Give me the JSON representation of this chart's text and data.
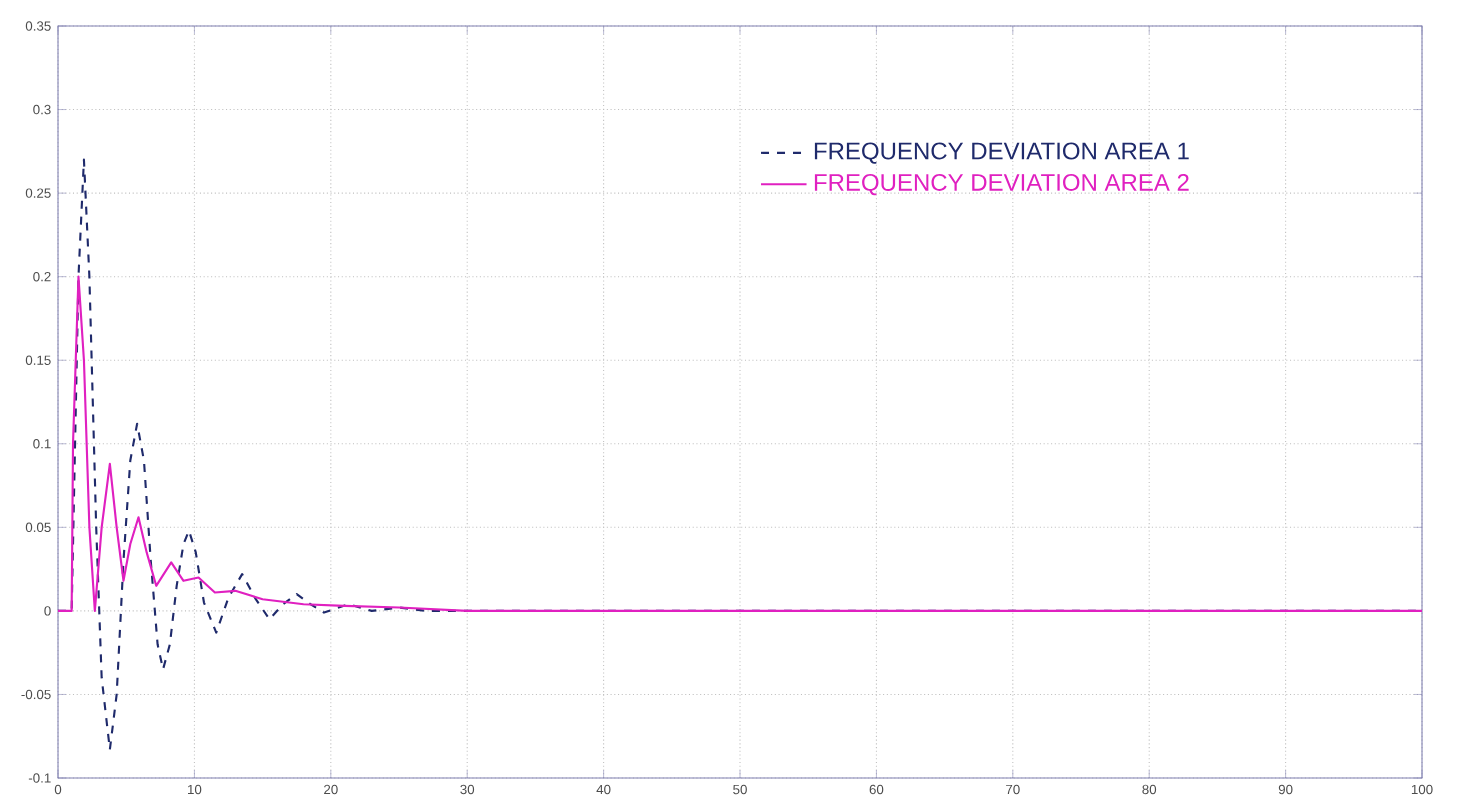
{
  "chart_data": {
    "type": "line",
    "xlim": [
      0,
      100
    ],
    "ylim": [
      -0.1,
      0.35
    ],
    "xticks": [
      0,
      10,
      20,
      30,
      40,
      50,
      60,
      70,
      80,
      90,
      100
    ],
    "yticks": [
      -0.1,
      -0.05,
      0,
      0.05,
      0.1,
      0.15,
      0.2,
      0.25,
      0.3,
      0.35
    ],
    "grid": true,
    "legend": "top right",
    "series": [
      {
        "name": "FREQUENCY DEVIATION AREA 1",
        "color": "#1f2a6b",
        "line_style": "dashed",
        "x": [
          0,
          1,
          1.2,
          1.5,
          1.9,
          2.3,
          2.8,
          3.2,
          3.8,
          4.3,
          4.8,
          5.3,
          5.8,
          6.3,
          6.8,
          7.3,
          7.7,
          8.2,
          8.7,
          9.2,
          9.6,
          10.1,
          10.7,
          11.6,
          12.5,
          13.5,
          14.5,
          15.5,
          16.5,
          17.5,
          18.5,
          19.5,
          21.3,
          23,
          25,
          27,
          30,
          100
        ],
        "values": [
          0,
          0,
          0.08,
          0.2,
          0.27,
          0.2,
          0.05,
          -0.04,
          -0.083,
          -0.05,
          0.03,
          0.09,
          0.112,
          0.09,
          0.03,
          -0.02,
          -0.035,
          -0.02,
          0.015,
          0.04,
          0.048,
          0.035,
          0.005,
          -0.013,
          0.008,
          0.022,
          0.007,
          -0.005,
          0.004,
          0.01,
          0.004,
          -0.001,
          0.004,
          0,
          0.002,
          0,
          0,
          0
        ]
      },
      {
        "name": "FREQUENCY DEVIATION AREA 2",
        "color": "#e020c0",
        "line_style": "solid",
        "x": [
          0,
          1,
          1.1,
          1.5,
          1.9,
          2.3,
          2.7,
          3.2,
          3.8,
          4.3,
          4.8,
          5.3,
          5.9,
          6.5,
          7.2,
          8.3,
          9.2,
          10.3,
          11.5,
          13,
          15,
          18,
          21,
          25,
          30,
          100
        ],
        "values": [
          0,
          0,
          0.1,
          0.2,
          0.15,
          0.05,
          0,
          0.05,
          0.088,
          0.05,
          0.018,
          0.04,
          0.056,
          0.035,
          0.015,
          0.029,
          0.018,
          0.02,
          0.011,
          0.012,
          0.007,
          0.004,
          0.003,
          0.002,
          0,
          0
        ]
      }
    ]
  }
}
